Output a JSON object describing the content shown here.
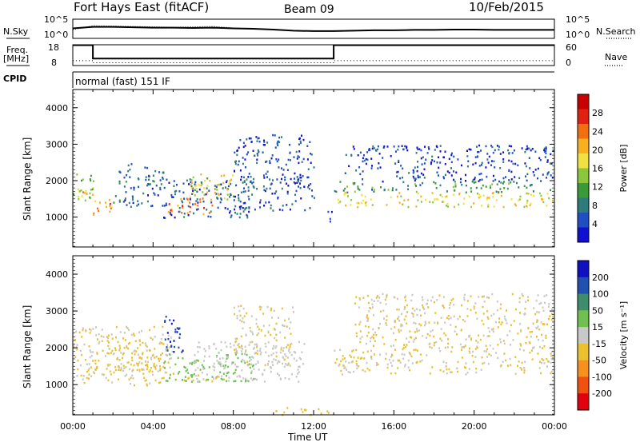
{
  "header": {
    "title": "Fort Hays East (fitACF)",
    "beam": "Beam 09",
    "date": "10/Feb/2015"
  },
  "labels": {
    "nsky": "N.Sky",
    "nsearch": "N.Search",
    "freq_line1": "Freq.",
    "freq_line2": "[MHz]",
    "nave": "Nave",
    "cpid": "CPID",
    "cpid_value": "normal (fast) 151 IF",
    "xlabel": "Time UT",
    "ylabel": "Slant Range [km]"
  },
  "chart_data": [
    {
      "type": "line",
      "name": "noise",
      "ylabels_left": [
        "10^5",
        "10^0"
      ],
      "ylabels_right": [
        "10^5",
        "10^0"
      ],
      "x": [
        0,
        1,
        2,
        3,
        4,
        5,
        6,
        7,
        8,
        9,
        10,
        11,
        12,
        13,
        14,
        15,
        16,
        17,
        18,
        19,
        20,
        21,
        22,
        23,
        24
      ],
      "sky": [
        2.6,
        3.0,
        3.0,
        2.9,
        2.8,
        2.8,
        2.7,
        2.8,
        2.6,
        2.5,
        2.3,
        2.0,
        1.9,
        1.9,
        2.0,
        2.1,
        2.1,
        2.2,
        2.2,
        2.3,
        2.3,
        2.2,
        2.2,
        2.2,
        2.2
      ],
      "search": [
        2.3,
        3.3,
        3.2,
        3.1,
        3.0,
        2.9,
        3.0,
        3.1,
        2.7,
        2.5,
        2.3,
        2.0,
        1.9,
        1.9,
        2.0,
        2.2,
        2.1,
        2.2,
        2.1,
        2.4,
        2.2,
        2.3,
        2.3,
        2.3,
        2.3
      ],
      "ylim": [
        0,
        5
      ]
    },
    {
      "type": "line",
      "name": "frequency",
      "ylabels_left": [
        "18",
        "8"
      ],
      "ylabels_right": [
        "60",
        "0"
      ],
      "freq": [
        [
          0,
          17.8
        ],
        [
          1,
          17.8
        ],
        [
          1,
          11.4
        ],
        [
          13,
          11.4
        ],
        [
          13,
          17.8
        ],
        [
          24,
          17.8
        ]
      ],
      "nave": [
        [
          0,
          14
        ],
        [
          1,
          14
        ],
        [
          1,
          8
        ],
        [
          13,
          8
        ],
        [
          13,
          14
        ],
        [
          24,
          14
        ]
      ],
      "freq_ylim": [
        8,
        18
      ],
      "nave_ylim": [
        0,
        60
      ]
    },
    {
      "type": "heatmap",
      "name": "power",
      "xlim": [
        0,
        24
      ],
      "xticks": [
        "00:00",
        "04:00",
        "08:00",
        "12:00",
        "16:00",
        "20:00",
        "00:00"
      ],
      "ylim": [
        180,
        4500
      ],
      "yticks": [
        1000,
        2000,
        3000,
        4000
      ],
      "colorbar": {
        "label": "Power [dB]",
        "ticks": [
          "28",
          "24",
          "20",
          "16",
          "12",
          "8",
          "4"
        ],
        "colors": [
          "#1010d0",
          "#1f4fc0",
          "#2f7a7a",
          "#3a9a3a",
          "#8cc63c",
          "#f0e040",
          "#f8b020",
          "#f07010",
          "#e02010",
          "#c80000"
        ]
      },
      "regions": [
        {
          "t": [
            0.0,
            1.0
          ],
          "r": [
            1400,
            2300
          ],
          "v": 14
        },
        {
          "t": [
            0.0,
            1.0
          ],
          "r": [
            1600,
            1800
          ],
          "v": 22
        },
        {
          "t": [
            1.0,
            2.0
          ],
          "r": [
            950,
            1500
          ],
          "v": 22
        },
        {
          "t": [
            2.0,
            4.5
          ],
          "r": [
            1300,
            2500
          ],
          "v": 6
        },
        {
          "t": [
            4.7,
            7.0
          ],
          "r": [
            1100,
            1600
          ],
          "v": 24
        },
        {
          "t": [
            4.5,
            9.0
          ],
          "r": [
            1000,
            2100
          ],
          "v": 6
        },
        {
          "t": [
            5.8,
            8.0
          ],
          "r": [
            1500,
            2200
          ],
          "v": 18
        },
        {
          "t": [
            8.0,
            12.0
          ],
          "r": [
            1200,
            3300
          ],
          "v": 5
        },
        {
          "t": [
            12.5,
            13.0
          ],
          "r": [
            900,
            1200
          ],
          "v": 6
        },
        {
          "t": [
            13.0,
            24.0
          ],
          "r": [
            1300,
            1700
          ],
          "v": 18
        },
        {
          "t": [
            13.0,
            24.0
          ],
          "r": [
            1700,
            2000
          ],
          "v": 10
        },
        {
          "t": [
            13.5,
            24.0
          ],
          "r": [
            2000,
            3000
          ],
          "v": 4
        }
      ]
    },
    {
      "type": "heatmap",
      "name": "velocity",
      "xlim": [
        0,
        24
      ],
      "xticks": [
        "00:00",
        "04:00",
        "08:00",
        "12:00",
        "16:00",
        "20:00",
        "00:00"
      ],
      "ylim": [
        180,
        4500
      ],
      "yticks": [
        1000,
        2000,
        3000,
        4000
      ],
      "colorbar": {
        "label": "Velocity [m s⁻¹]",
        "ticks": [
          "200",
          "100",
          "50",
          "15",
          "-15",
          "-50",
          "-100",
          "-200"
        ],
        "colors": [
          "#e00010",
          "#f05010",
          "#f89020",
          "#e8c030",
          "#c8c8c8",
          "#70c050",
          "#3e8e6e",
          "#2050b0",
          "#1010c0"
        ]
      },
      "regions": [
        {
          "t": [
            0.0,
            5.0
          ],
          "r": [
            1000,
            2600
          ],
          "v": 0
        },
        {
          "t": [
            1.0,
            4.5
          ],
          "r": [
            1400,
            2300
          ],
          "v": -10
        },
        {
          "t": [
            4.5,
            5.5
          ],
          "r": [
            1800,
            2900
          ],
          "v": 200
        },
        {
          "t": [
            4.5,
            9.0
          ],
          "r": [
            1100,
            1900
          ],
          "v": 60
        },
        {
          "t": [
            5.5,
            7.5
          ],
          "r": [
            1100,
            1300
          ],
          "v": -40
        },
        {
          "t": [
            6.0,
            11.5
          ],
          "r": [
            1100,
            2200
          ],
          "v": 30
        },
        {
          "t": [
            8.0,
            11.0
          ],
          "r": [
            1500,
            3200
          ],
          "v": 0
        },
        {
          "t": [
            10.0,
            13.0
          ],
          "r": [
            200,
            400
          ],
          "v": -40
        },
        {
          "t": [
            13.0,
            24.0
          ],
          "r": [
            1300,
            2000
          ],
          "v": 0
        },
        {
          "t": [
            14.0,
            24.0
          ],
          "r": [
            2000,
            3500
          ],
          "v": 0
        }
      ]
    }
  ]
}
